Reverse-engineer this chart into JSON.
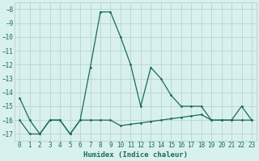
{
  "line1_x": [
    0,
    1,
    2,
    3,
    4,
    5,
    6,
    7,
    8,
    9,
    10,
    11,
    12,
    13,
    14,
    15,
    16,
    17,
    18,
    19,
    20,
    21,
    22,
    23
  ],
  "line1_y": [
    -14.4,
    -16.0,
    -17.0,
    -16.0,
    -16.0,
    -17.0,
    -16.0,
    -12.2,
    -8.2,
    -8.2,
    -10.0,
    -12.0,
    -15.0,
    -12.2,
    -13.0,
    -14.2,
    -15.0,
    -15.0,
    -15.0,
    -16.0,
    -16.0,
    -16.0,
    -15.0,
    -16.0
  ],
  "line2_x": [
    0,
    1,
    2,
    3,
    4,
    5,
    6,
    7,
    8,
    9,
    10,
    11,
    12,
    13,
    14,
    15,
    16,
    17,
    18,
    19,
    20,
    21,
    22,
    23
  ],
  "line2_y": [
    -16.0,
    -17.0,
    -17.0,
    -16.0,
    -16.0,
    -17.0,
    -16.0,
    -16.0,
    -16.0,
    -16.0,
    -16.4,
    -16.3,
    -16.2,
    -16.1,
    -16.0,
    -15.9,
    -15.8,
    -15.7,
    -15.6,
    -16.0,
    -16.0,
    -16.0,
    -16.0,
    -16.0
  ],
  "line_color": "#1a6b5a",
  "bg_color": "#d8f0ee",
  "grid_color": "#b8d4d0",
  "xlabel": "Humidex (Indice chaleur)",
  "ylim": [
    -17.5,
    -7.5
  ],
  "xlim": [
    -0.5,
    23.5
  ],
  "yticks": [
    -8,
    -9,
    -10,
    -11,
    -12,
    -13,
    -14,
    -15,
    -16,
    -17
  ],
  "xticks": [
    0,
    1,
    2,
    3,
    4,
    5,
    6,
    7,
    8,
    9,
    10,
    11,
    12,
    13,
    14,
    15,
    16,
    17,
    18,
    19,
    20,
    21,
    22,
    23
  ]
}
